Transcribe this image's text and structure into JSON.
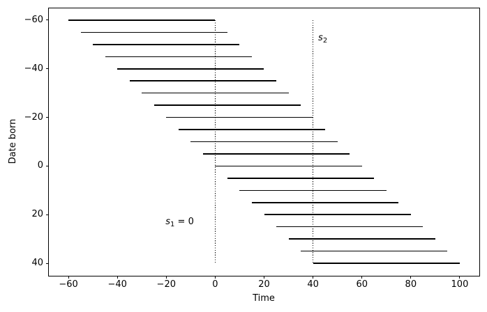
{
  "chart_data": {
    "type": "line",
    "subtype": "horizontal-lifespan-segments",
    "title": "",
    "xlabel": "Time",
    "ylabel": "Date born",
    "xlim": [
      -68,
      108
    ],
    "ylim": [
      -65,
      45
    ],
    "y_axis_inverted": true,
    "grid": false,
    "legend_position": "none",
    "x_ticks": [
      -60,
      -40,
      -20,
      0,
      20,
      40,
      60,
      80,
      100
    ],
    "y_ticks": [
      -60,
      -40,
      -20,
      0,
      20,
      40
    ],
    "line_color": "#000000",
    "lifespan_length": 60,
    "segments": [
      {
        "birth": -60,
        "start": -60,
        "end": 0
      },
      {
        "birth": -55,
        "start": -55,
        "end": 5
      },
      {
        "birth": -50,
        "start": -50,
        "end": 10
      },
      {
        "birth": -45,
        "start": -45,
        "end": 15
      },
      {
        "birth": -40,
        "start": -40,
        "end": 20
      },
      {
        "birth": -35,
        "start": -35,
        "end": 25
      },
      {
        "birth": -30,
        "start": -30,
        "end": 30
      },
      {
        "birth": -25,
        "start": -25,
        "end": 35
      },
      {
        "birth": -20,
        "start": -20,
        "end": 40
      },
      {
        "birth": -15,
        "start": -15,
        "end": 45
      },
      {
        "birth": -10,
        "start": -10,
        "end": 50
      },
      {
        "birth": -5,
        "start": -5,
        "end": 55
      },
      {
        "birth": 0,
        "start": 0,
        "end": 60
      },
      {
        "birth": 5,
        "start": 5,
        "end": 65
      },
      {
        "birth": 10,
        "start": 10,
        "end": 70
      },
      {
        "birth": 15,
        "start": 15,
        "end": 75
      },
      {
        "birth": 20,
        "start": 20,
        "end": 80
      },
      {
        "birth": 25,
        "start": 25,
        "end": 85
      },
      {
        "birth": 30,
        "start": 30,
        "end": 90
      },
      {
        "birth": 35,
        "start": 35,
        "end": 95
      },
      {
        "birth": 40,
        "start": 40,
        "end": 100
      }
    ],
    "vlines": [
      {
        "name": "s1",
        "x": 0,
        "y_from": -60,
        "y_to": 40,
        "style": "dotted",
        "color": "#000000"
      },
      {
        "name": "s2",
        "x": 40,
        "y_from": -60,
        "y_to": 40,
        "style": "dotted",
        "color": "#000000"
      }
    ],
    "annotations": [
      {
        "name": "s1-label",
        "base": "s",
        "sub": "1",
        "rest": " = 0",
        "x": -14.5,
        "y": 23
      },
      {
        "name": "s2-label",
        "base": "s",
        "sub": "2",
        "rest": "",
        "x": 44,
        "y": -52.5
      }
    ]
  }
}
